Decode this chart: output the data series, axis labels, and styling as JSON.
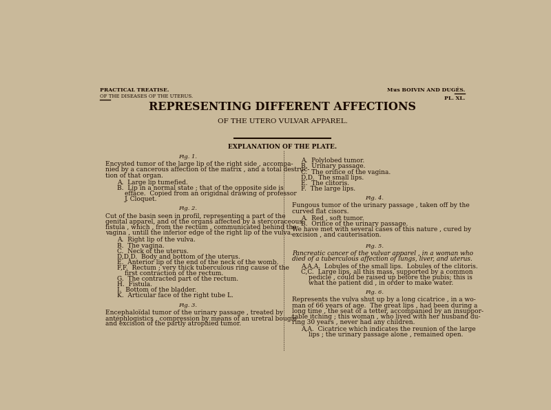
{
  "bg_color": "#c9b99a",
  "text_color": "#1a0a00",
  "title_main": "REPRESENTING DIFFERENT AFFECTIONS",
  "title_sub": "OF THE UTERO VULVAR APPAREL.",
  "header_left_line1": "PRACTICAL TREATISE.",
  "header_left_line2": "OF THE DISEASES OF THE UTERUS.",
  "header_right_line1": "Mᴚs BOIVIN AND DUGÉS.",
  "header_right_line2": "PL. XL.",
  "section_header": "EXPLANATION OF THE PLATE.",
  "left_column": [
    {
      "type": "fig_header",
      "text": "Fig. 1."
    },
    {
      "type": "body",
      "text": "Encysted tumor of the large lip of the right side , accompa-\nnied by a cancerous affection of the matrix , and a total destruc-\ntion of that organ."
    },
    {
      "type": "item",
      "text": "A.  Large lip tumefied."
    },
    {
      "type": "item_long",
      "text": "B.  Lip in a normal state ; that of the opposite side is\n   efface.  Copied from an origidnal drawing of professor\n   J. Cloquet."
    },
    {
      "type": "spacer"
    },
    {
      "type": "fig_header",
      "text": "Fig. 2."
    },
    {
      "type": "body",
      "text": "Cut of the basin seen in profil, representing a part of the\ngenital apparel, and of the organs affected by a stercoraceous\nfistula , which , from the rectum , communicated behind the\nvagina , untill the inferior edge of the right lip of the vulva."
    },
    {
      "type": "item",
      "text": "A.  Right lip of the vulva."
    },
    {
      "type": "item",
      "text": "B.  The vagina."
    },
    {
      "type": "item",
      "text": "C.  Neck of the uterus."
    },
    {
      "type": "item",
      "text": "D,D,D.  Body and bottom of the uterus."
    },
    {
      "type": "item",
      "text": "E.  Anterior lip of the end of the neck of the womb."
    },
    {
      "type": "item_long",
      "text": "F,F.  Rectum ; very thick tuberculous ring cause of the\n   first contraction of the rectum."
    },
    {
      "type": "item",
      "text": "G.  The contracted part of the rectum."
    },
    {
      "type": "item",
      "text": "H.  Fistula."
    },
    {
      "type": "item",
      "text": "I.  Bottom of the bladder."
    },
    {
      "type": "item",
      "text": "K.  Articular face of the right tube L."
    },
    {
      "type": "spacer"
    },
    {
      "type": "fig_header",
      "text": "Fig. 3."
    },
    {
      "type": "body",
      "text": "Encephaloïdal tumor of the urinary passage , treated by\nantéphlogistics , compression by means of an uretral bougie\nand excision of the partly atrophied tumor."
    }
  ],
  "right_column": [
    {
      "type": "item",
      "text": "A.  Polylobed tumor."
    },
    {
      "type": "item",
      "text": "B.  Urinary passage."
    },
    {
      "type": "item",
      "text": "C.  The orifice of the vagina."
    },
    {
      "type": "item",
      "text": "D,D.  The small lips."
    },
    {
      "type": "item",
      "text": "E.  The clitoris."
    },
    {
      "type": "item",
      "text": "F.  The large lips."
    },
    {
      "type": "spacer"
    },
    {
      "type": "fig_header",
      "text": "Fig. 4."
    },
    {
      "type": "body",
      "text": "Fungous tumor of the urinary passage , taken off by the\ncurved flat cisors."
    },
    {
      "type": "item",
      "text": "A.  Red , soft tumor."
    },
    {
      "type": "item",
      "text": "B.  Orifice of the urinary passage."
    },
    {
      "type": "body",
      "text": "We have met with several cases of this nature , cured by\nexcision , and cauterisation."
    },
    {
      "type": "spacer"
    },
    {
      "type": "fig_header",
      "text": "Fig. 5."
    },
    {
      "type": "body_italic",
      "text": "Pancreatic cancer of the vulvar apparel , in a woman who\ndied of a tuberculous affection of lungs, liver, and uterus."
    },
    {
      "type": "item",
      "text": "A,A,A.  Lobules of the small lips.  Lobules of the clitoris."
    },
    {
      "type": "item_long",
      "text": "C,C.  Large lips, all this mass, supported by a common\n   pedicle , could be raised up before the pubis; this is\n   what the patient did , in order to make water."
    },
    {
      "type": "spacer"
    },
    {
      "type": "fig_header",
      "text": "Fig. 6."
    },
    {
      "type": "body",
      "text": "Represents the vulva shut up by a long cicatrice , in a wo-\nman of 66 years of age.  The great lips , had been during a\nlong time , the seat of a tetter, accompanied by an insuppor-\ntable itching ; this woman , who lived with her husband du-\nring 30 years , never had any children."
    },
    {
      "type": "item_long",
      "text": "A,A.  Cicatrice which indicates the reunion of the large\n   lips ; the urinary passage alone , remained open."
    }
  ]
}
